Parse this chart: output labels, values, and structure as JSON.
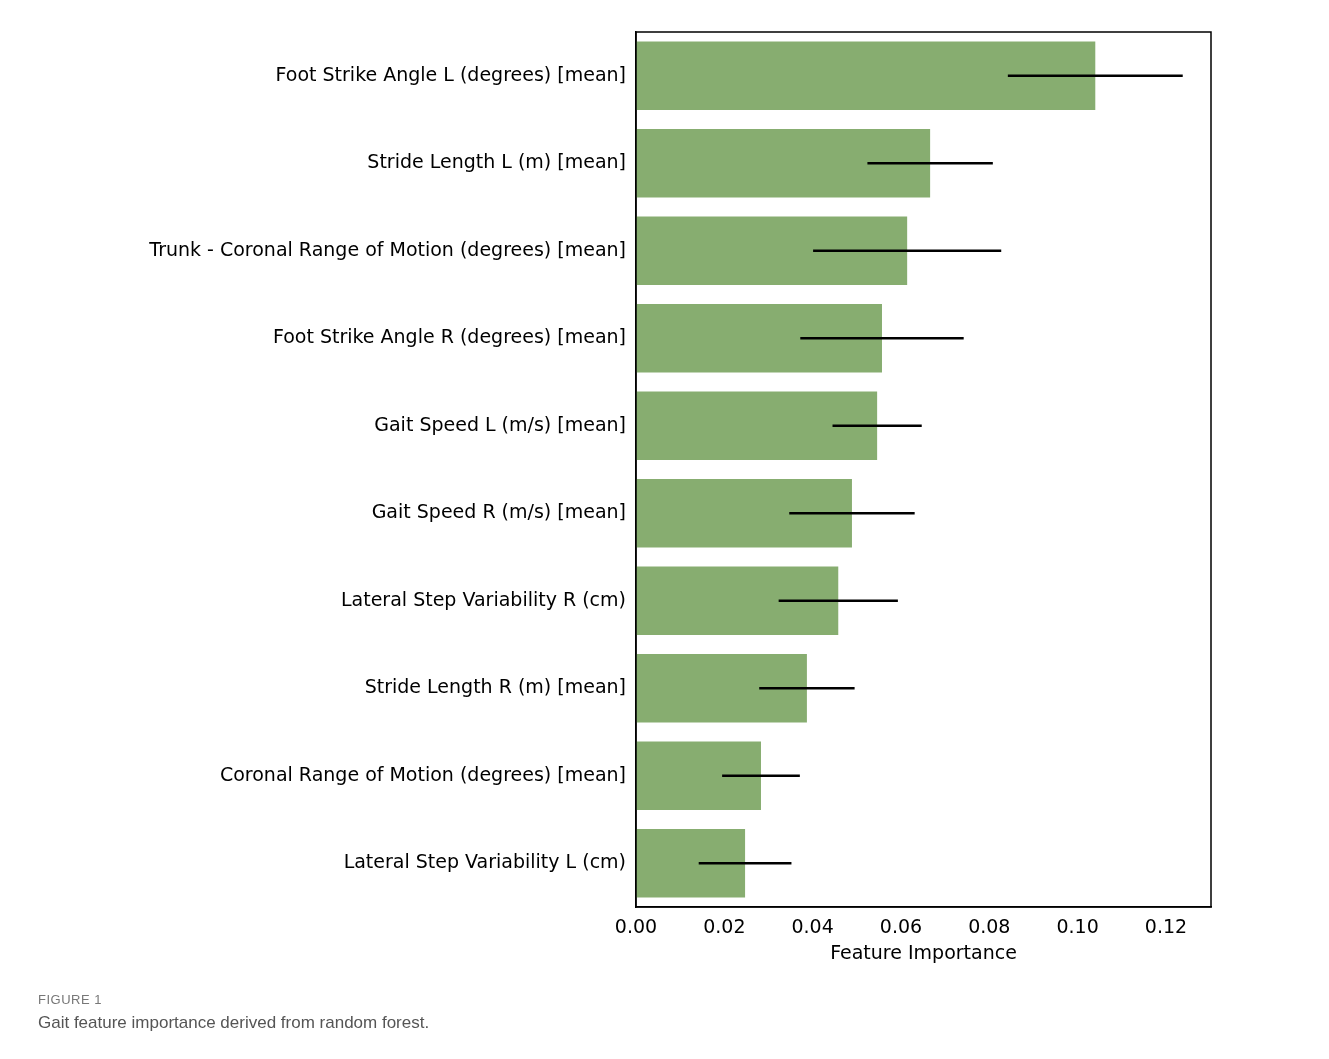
{
  "chart_data": {
    "type": "bar",
    "orientation": "horizontal",
    "xlabel": "Feature Importance",
    "categories": [
      "Foot Strike Angle L (degrees) [mean]",
      "Stride Length L (m) [mean]",
      "Trunk - Coronal Range of Motion (degrees) [mean]",
      "Foot Strike Angle R (degrees) [mean]",
      "Gait Speed L (m/s) [mean]",
      "Gait Speed R (m/s) [mean]",
      "Lateral Step Variability R (cm)",
      "Stride Length R (m) [mean]",
      "Coronal Range of Motion (degrees) [mean]",
      "Lateral Step Variability L (cm)"
    ],
    "values": [
      0.104,
      0.0666,
      0.0614,
      0.0557,
      0.0546,
      0.0489,
      0.0458,
      0.0387,
      0.0283,
      0.0247
    ],
    "errors": [
      0.0198,
      0.0142,
      0.0213,
      0.0185,
      0.0101,
      0.0142,
      0.0135,
      0.0108,
      0.0088,
      0.0105
    ],
    "color": "#87ad70",
    "xlim": [
      0,
      0.1302
    ],
    "xticks": [
      {
        "value": 0,
        "label": "0.00"
      },
      {
        "value": 0.02,
        "label": "0.02"
      },
      {
        "value": 0.04,
        "label": "0.04"
      },
      {
        "value": 0.06,
        "label": "0.06"
      },
      {
        "value": 0.08,
        "label": "0.08"
      },
      {
        "value": 0.1,
        "label": "0.10"
      },
      {
        "value": 0.12,
        "label": "0.12"
      }
    ],
    "grid": false,
    "legend": false,
    "annotations": [
      "FIGURE 1",
      "Gait feature importance derived from random forest."
    ]
  }
}
